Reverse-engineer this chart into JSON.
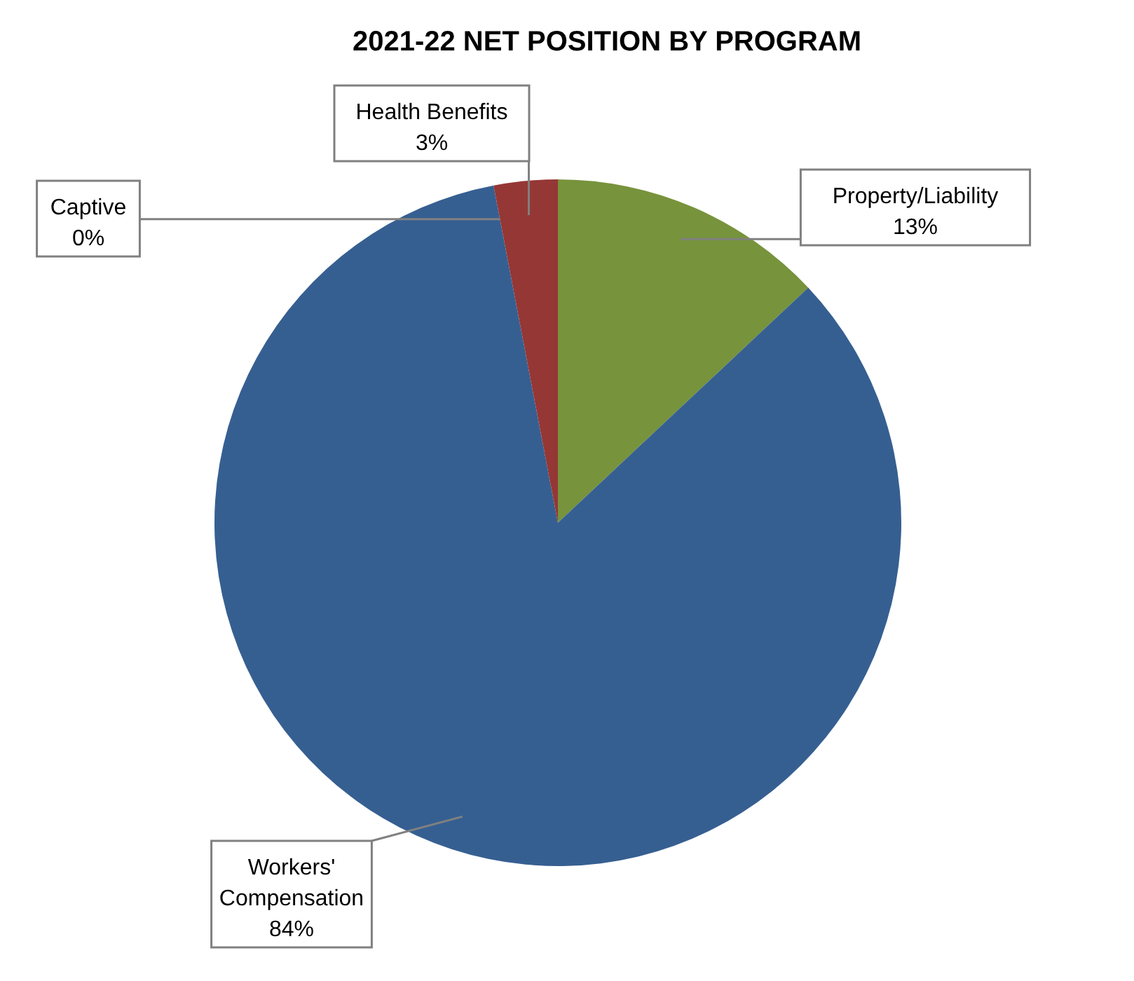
{
  "chart_data": {
    "type": "pie",
    "title": "2021-22 NET POSITION BY PROGRAM",
    "categories": [
      "Property/Liability",
      "Workers' Compensation",
      "Captive",
      "Health Benefits"
    ],
    "values": [
      13,
      84,
      0,
      3
    ],
    "value_labels": [
      "13%",
      "84%",
      "0%",
      "3%"
    ],
    "colors": [
      "#77933c",
      "#365f91",
      "#ffffff",
      "#953735"
    ]
  }
}
